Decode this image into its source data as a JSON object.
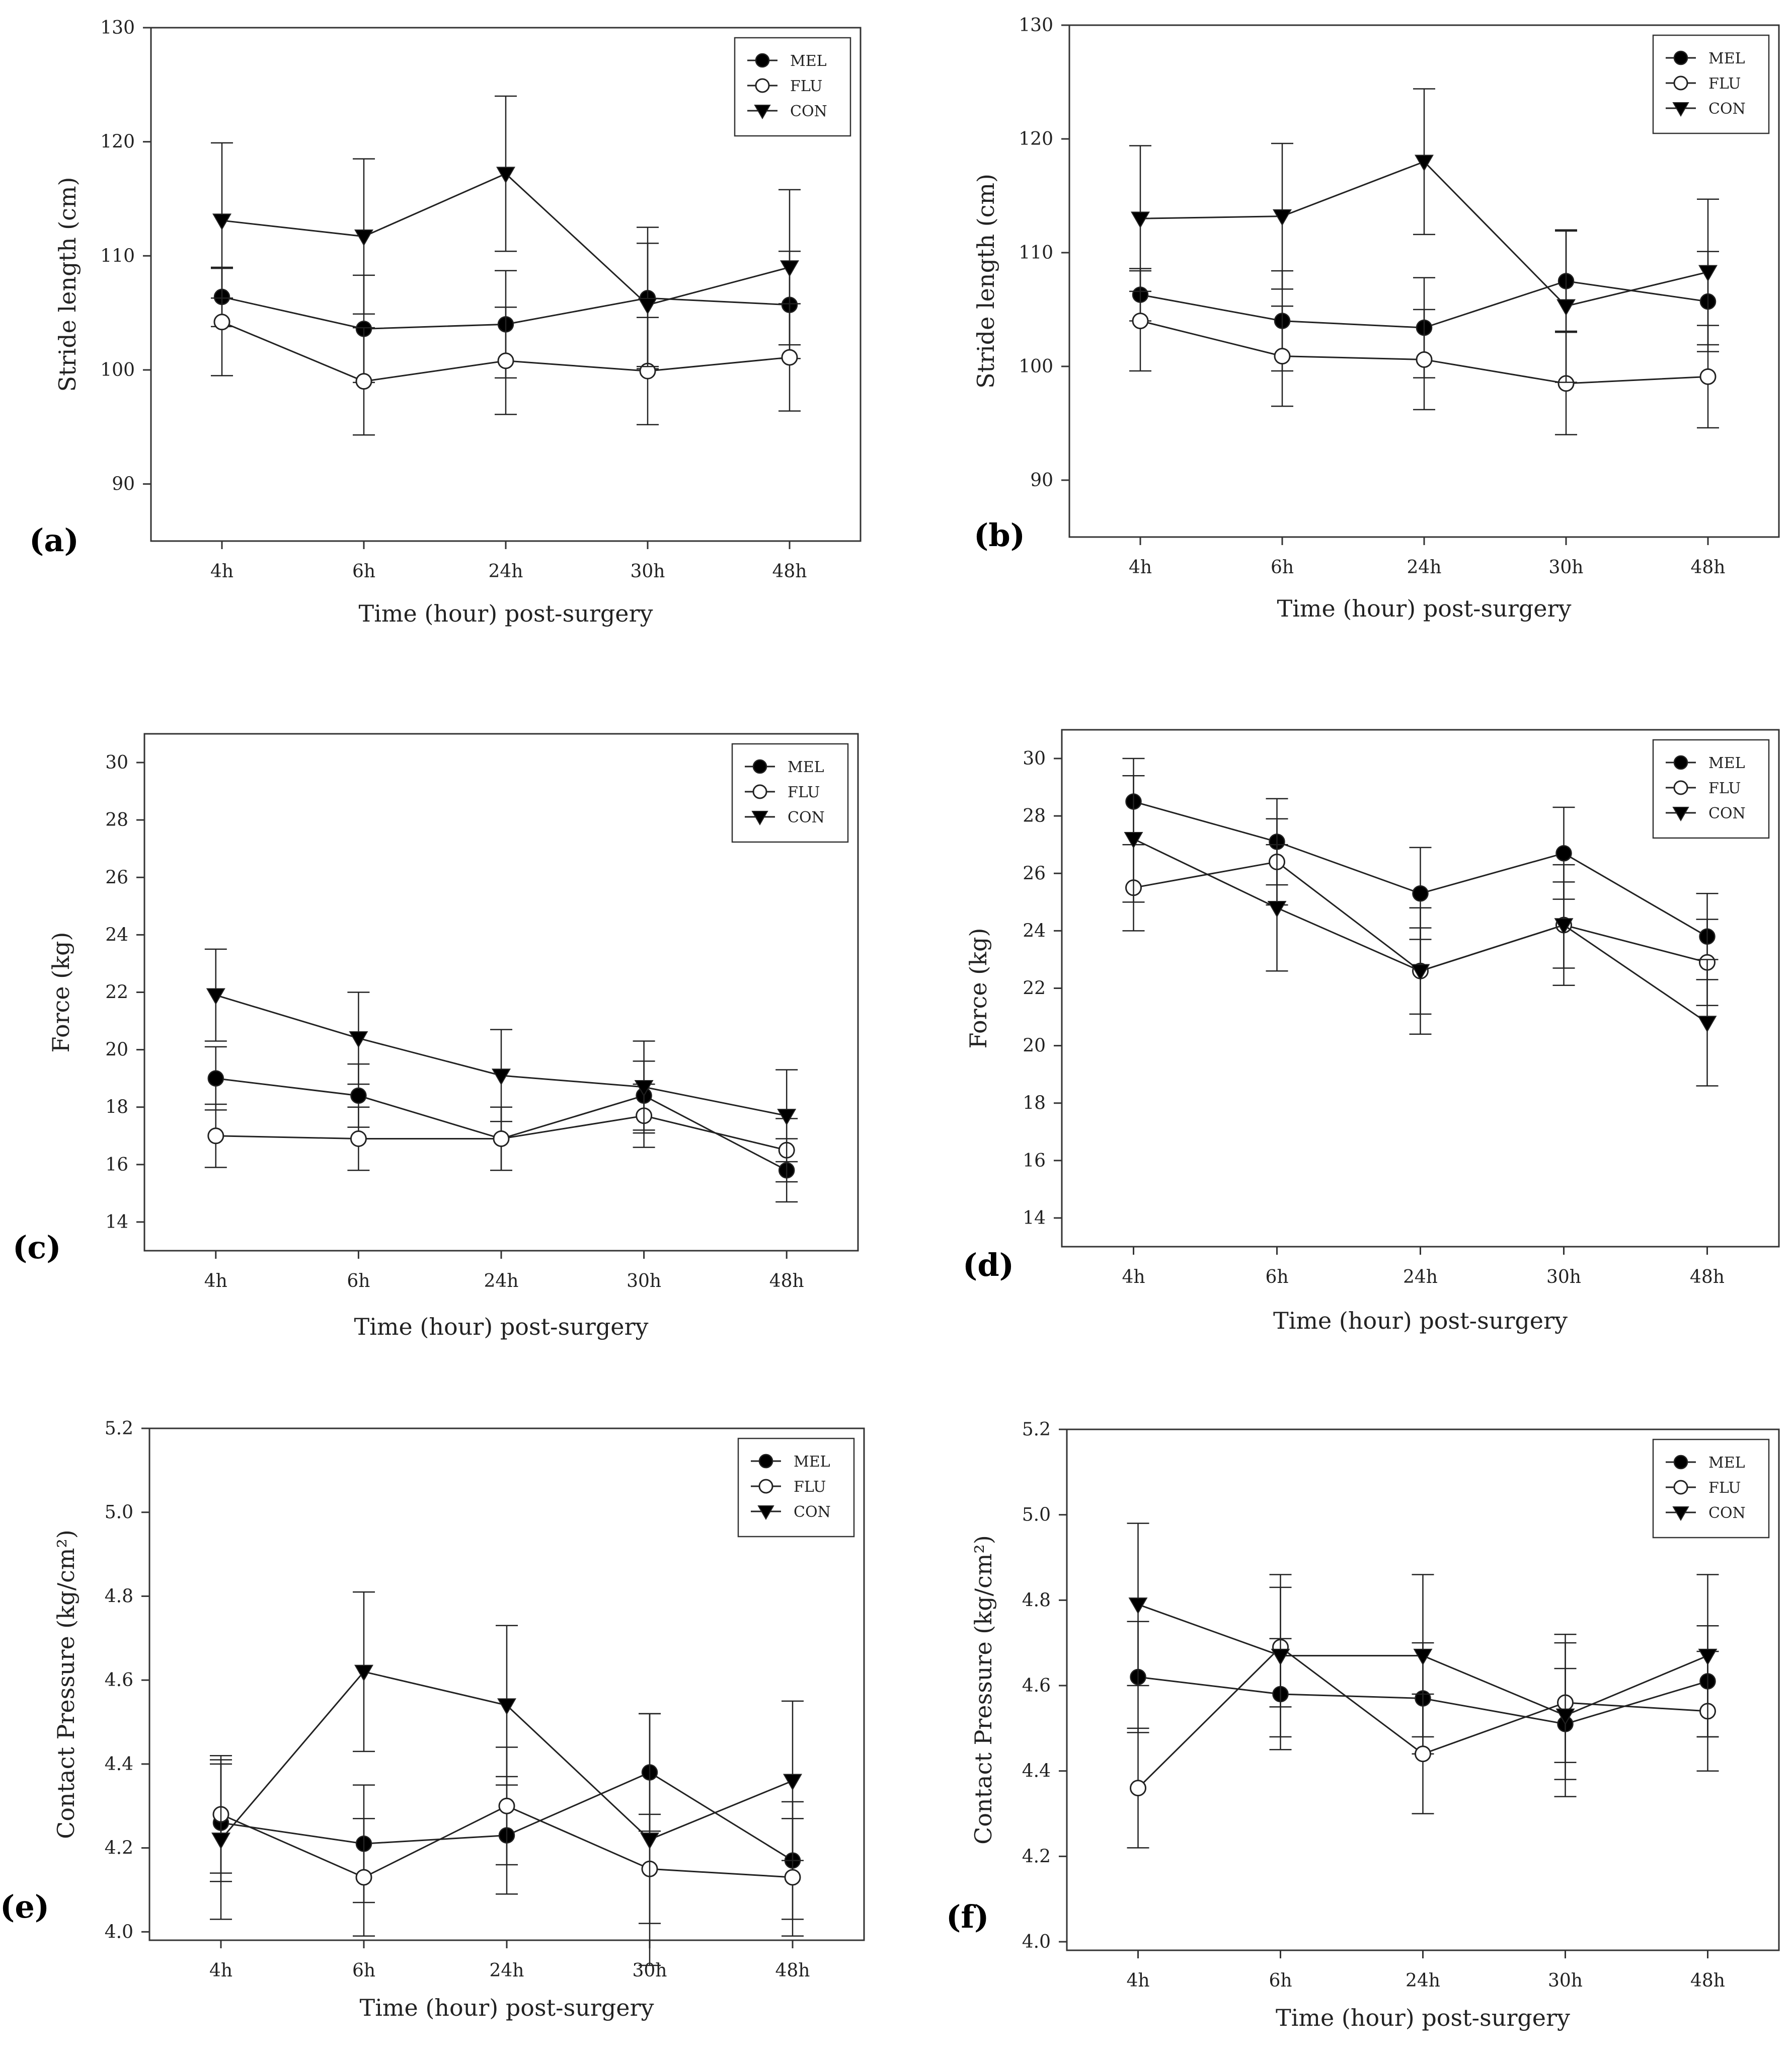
{
  "figure": {
    "series_styles": [
      {
        "name": "MEL",
        "marker": "filled-circle"
      },
      {
        "name": "FLU",
        "marker": "open-circle"
      },
      {
        "name": "CON",
        "marker": "filled-triangle-down"
      }
    ],
    "colors": {
      "line": "#222222",
      "marker_fill": "#000000",
      "open_marker_fill": "#ffffff"
    }
  },
  "chart_data": [
    {
      "panel": "(a)",
      "type": "line",
      "x": [
        "4h",
        "6h",
        "24h",
        "30h",
        "48h"
      ],
      "xlabel": "Time (hour) post-surgery",
      "ylabel": "Stride length (cm)",
      "ylim": [
        85,
        130
      ],
      "yticks": [
        90,
        100,
        110,
        120,
        130
      ],
      "grid": false,
      "legend": "top-right",
      "series": [
        {
          "name": "MEL",
          "values": [
            106.4,
            103.6,
            104.0,
            106.3,
            105.7
          ],
          "err": [
            2.6,
            4.7,
            4.7,
            6.2,
            4.7
          ]
        },
        {
          "name": "FLU",
          "values": [
            104.2,
            99.0,
            100.8,
            99.9,
            101.1
          ],
          "err": [
            4.7,
            4.7,
            4.7,
            4.7,
            4.7
          ]
        },
        {
          "name": "CON",
          "values": [
            113.1,
            111.7,
            117.2,
            105.7,
            109.0
          ],
          "err": [
            6.8,
            6.8,
            6.8,
            5.4,
            6.8
          ]
        }
      ]
    },
    {
      "panel": "(b)",
      "type": "line",
      "x": [
        "4h",
        "6h",
        "24h",
        "30h",
        "48h"
      ],
      "xlabel": "Time (hour) post-surgery",
      "ylabel": "Stride length (cm)",
      "ylim": [
        85,
        130
      ],
      "yticks": [
        90,
        100,
        110,
        120,
        130
      ],
      "grid": false,
      "legend": "top-right",
      "series": [
        {
          "name": "MEL",
          "values": [
            106.3,
            104.0,
            103.4,
            107.5,
            105.7
          ],
          "err": [
            2.3,
            4.4,
            4.4,
            4.4,
            4.4
          ]
        },
        {
          "name": "FLU",
          "values": [
            104.0,
            100.9,
            100.6,
            98.5,
            99.1
          ],
          "err": [
            4.4,
            4.4,
            4.4,
            4.5,
            4.5
          ]
        },
        {
          "name": "CON",
          "values": [
            113.0,
            113.2,
            118.0,
            105.3,
            108.3
          ],
          "err": [
            6.4,
            6.4,
            6.4,
            6.7,
            6.4
          ]
        }
      ]
    },
    {
      "panel": "(c)",
      "type": "line",
      "x": [
        "4h",
        "6h",
        "24h",
        "30h",
        "48h"
      ],
      "xlabel": "Time (hour) post-surgery",
      "ylabel": "Force (kg)",
      "ylim": [
        13,
        31
      ],
      "yticks": [
        14,
        16,
        18,
        20,
        22,
        24,
        26,
        28,
        30
      ],
      "grid": false,
      "legend": "top-right",
      "series": [
        {
          "name": "MEL",
          "values": [
            19.0,
            18.4,
            16.9,
            18.4,
            15.8
          ],
          "err": [
            1.1,
            1.1,
            1.1,
            1.2,
            1.1
          ]
        },
        {
          "name": "FLU",
          "values": [
            17.0,
            16.9,
            16.9,
            17.7,
            16.5
          ],
          "err": [
            1.1,
            1.1,
            1.1,
            1.1,
            1.1
          ]
        },
        {
          "name": "CON",
          "values": [
            21.9,
            20.4,
            19.1,
            18.7,
            17.7
          ],
          "err": [
            1.6,
            1.6,
            1.6,
            1.6,
            1.6
          ]
        }
      ]
    },
    {
      "panel": "(d)",
      "type": "line",
      "x": [
        "4h",
        "6h",
        "24h",
        "30h",
        "48h"
      ],
      "xlabel": "Time (hour) post-surgery",
      "ylabel": "Force (kg)",
      "ylim": [
        13,
        31
      ],
      "yticks": [
        14,
        16,
        18,
        20,
        22,
        24,
        26,
        28,
        30
      ],
      "grid": false,
      "legend": "top-right",
      "series": [
        {
          "name": "MEL",
          "values": [
            28.5,
            27.1,
            25.3,
            26.7,
            23.8
          ],
          "err": [
            1.5,
            1.5,
            1.6,
            1.6,
            1.5
          ]
        },
        {
          "name": "FLU",
          "values": [
            25.5,
            26.4,
            22.6,
            24.2,
            22.9
          ],
          "err": [
            1.5,
            1.5,
            1.5,
            1.5,
            1.5
          ]
        },
        {
          "name": "CON",
          "values": [
            27.2,
            24.8,
            22.6,
            24.2,
            20.8
          ],
          "err": [
            2.2,
            2.2,
            2.2,
            2.1,
            2.2
          ]
        }
      ]
    },
    {
      "panel": "(e)",
      "type": "line",
      "x": [
        "4h",
        "6h",
        "24h",
        "30h",
        "48h"
      ],
      "xlabel": "Time (hour) post-surgery",
      "ylabel": "Contact Pressure (kg/cm²)",
      "ylim": [
        3.98,
        5.2
      ],
      "yticks": [
        4.0,
        4.2,
        4.4,
        4.6,
        4.8,
        5.0,
        5.2
      ],
      "grid": false,
      "legend": "top-right",
      "series": [
        {
          "name": "MEL",
          "values": [
            4.26,
            4.21,
            4.23,
            4.38,
            4.17
          ],
          "err": [
            0.14,
            0.14,
            0.14,
            0.14,
            0.14
          ]
        },
        {
          "name": "FLU",
          "values": [
            4.28,
            4.13,
            4.3,
            4.15,
            4.13
          ],
          "err": [
            0.14,
            0.14,
            0.14,
            0.13,
            0.14
          ]
        },
        {
          "name": "CON",
          "values": [
            4.22,
            4.62,
            4.54,
            4.22,
            4.36
          ],
          "err": [
            0.19,
            0.19,
            0.19,
            0.3,
            0.19
          ]
        }
      ]
    },
    {
      "panel": "(f)",
      "type": "line",
      "x": [
        "4h",
        "6h",
        "24h",
        "30h",
        "48h"
      ],
      "xlabel": "Time (hour) post-surgery",
      "ylabel": "Contact Pressure (kg/cm²)",
      "ylim": [
        3.98,
        5.2
      ],
      "yticks": [
        4.0,
        4.2,
        4.4,
        4.6,
        4.8,
        5.0,
        5.2
      ],
      "grid": false,
      "legend": "top-right",
      "series": [
        {
          "name": "MEL",
          "values": [
            4.62,
            4.58,
            4.57,
            4.51,
            4.61
          ],
          "err": [
            0.13,
            0.13,
            0.13,
            0.13,
            0.13
          ]
        },
        {
          "name": "FLU",
          "values": [
            4.36,
            4.69,
            4.44,
            4.56,
            4.54
          ],
          "err": [
            0.14,
            0.14,
            0.14,
            0.14,
            0.14
          ]
        },
        {
          "name": "CON",
          "values": [
            4.79,
            4.67,
            4.67,
            4.53,
            4.67
          ],
          "err": [
            0.19,
            0.19,
            0.19,
            0.19,
            0.19
          ]
        }
      ]
    }
  ]
}
